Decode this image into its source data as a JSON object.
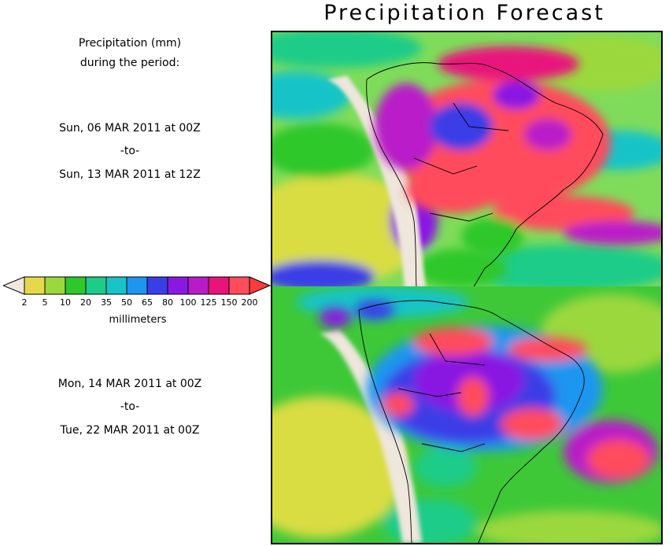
{
  "title": "Precipitation Forecast",
  "description": [
    "Precipitation (mm)",
    "during the period:"
  ],
  "period1": {
    "start": "Sun, 06 MAR 2011 at 00Z",
    "sep": "-to-",
    "end": "Sun, 13 MAR 2011 at 12Z"
  },
  "period2": {
    "start": "Mon, 14 MAR 2011 at 00Z",
    "sep": "-to-",
    "end": "Tue, 22 MAR 2011 at 00Z"
  },
  "colorbar": {
    "label": "millimeters",
    "ticks": [
      "2",
      "5",
      "10",
      "20",
      "35",
      "50",
      "65",
      "80",
      "100",
      "125",
      "150",
      "200"
    ],
    "under_color": "#f0e8e0",
    "colors": [
      "#e6d84a",
      "#9bd83c",
      "#2ec82c",
      "#1ccc88",
      "#19c4c8",
      "#1e96f0",
      "#3a3ee6",
      "#8a18e2",
      "#b91bc8",
      "#e8147c",
      "#ff4c5c"
    ],
    "over_color": "#ff3b3b"
  },
  "map_colors": {
    "ocean_base": "#7fdc5a",
    "land_dry": "#efe6dc"
  }
}
